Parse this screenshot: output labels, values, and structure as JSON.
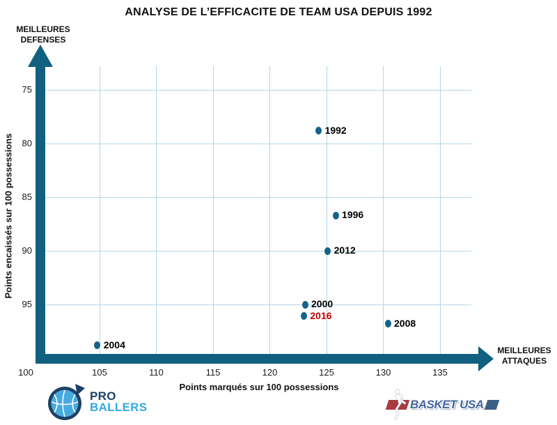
{
  "title": "ANALYSE DE L’EFFICACITE DE TEAM USA DEPUIS 1992",
  "axes": {
    "defense_label": [
      "MEILLEURES",
      "DEFENSES"
    ],
    "attack_label": [
      "MEILLEURES",
      "ATTAQUES"
    ],
    "x_title": "Points marqués sur 100 possessions",
    "y_title": "Points encaissés sur 100 possessions"
  },
  "chart_data": {
    "type": "scatter",
    "title": "ANALYSE DE L’EFFICACITE DE TEAM USA DEPUIS 1992",
    "xlabel": "Points marqués sur 100 possessions",
    "ylabel": "Points encaissés sur 100 possessions",
    "x_ticks": [
      100,
      105,
      110,
      115,
      120,
      125,
      130,
      135
    ],
    "y_ticks": [
      75,
      80,
      85,
      90,
      95
    ],
    "xlim": [
      100,
      139
    ],
    "ylim": [
      75,
      100
    ],
    "y_axis_inverted": true,
    "grid": true,
    "legend": "none",
    "points": [
      {
        "label": "1992",
        "x": 124.3,
        "y": 78.8,
        "label_color": "#000000"
      },
      {
        "label": "1996",
        "x": 125.8,
        "y": 86.7,
        "label_color": "#000000"
      },
      {
        "label": "2000",
        "x": 123.1,
        "y": 95.0,
        "label_color": "#000000"
      },
      {
        "label": "2004",
        "x": 104.8,
        "y": 98.8,
        "label_color": "#000000"
      },
      {
        "label": "2008",
        "x": 130.4,
        "y": 96.8,
        "label_color": "#000000"
      },
      {
        "label": "2012",
        "x": 125.1,
        "y": 90.0,
        "label_color": "#000000"
      },
      {
        "label": "2016",
        "x": 123.0,
        "y": 96.1,
        "label_color": "#c00000"
      }
    ]
  },
  "colors": {
    "axis": "#11607f",
    "gridline": "#b3d7e6",
    "dot": "#15638a",
    "highlight_year": "#c00000"
  },
  "icons": {
    "proballers_ball": "basketball-in-speech-bubble",
    "basketusa_player": "dunking-player-silhouette"
  },
  "logos": {
    "proballers": {
      "line1": "PRO",
      "line2": "BALLERS",
      "navy": "#1d4064",
      "blue": "#36a9e1"
    },
    "basketusa": {
      "text": "BASKET USA",
      "red": "#a83c40",
      "blue": "#3c5f82",
      "text_color": "#44659f"
    }
  }
}
